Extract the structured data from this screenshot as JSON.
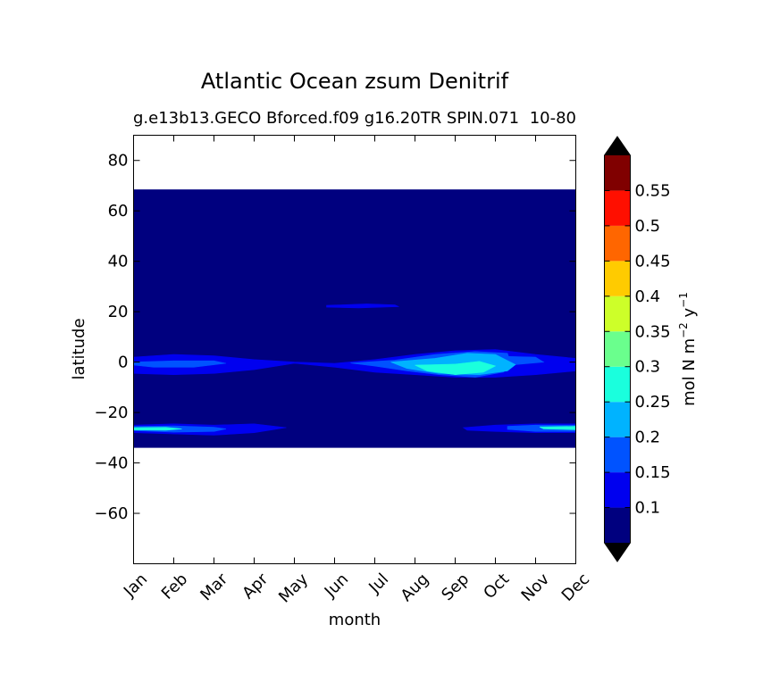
{
  "chart_data": {
    "type": "heatmap",
    "title": "Atlantic Ocean zsum Denitrif",
    "subtitle": "g.e13b13.GECO Bforced.f09 g16.20TR SPIN.071",
    "subtitle_overlap": "10-80",
    "xlabel": "month",
    "ylabel": "latitude",
    "x_ticks": [
      "Jan",
      "Feb",
      "Mar",
      "Apr",
      "May",
      "Jun",
      "Jul",
      "Aug",
      "Sep",
      "Oct",
      "Nov",
      "Dec"
    ],
    "xlim": [
      0,
      11
    ],
    "ylim": [
      -80,
      90
    ],
    "y_ticks": [
      80,
      60,
      40,
      20,
      0,
      -20,
      -40,
      -60
    ],
    "y_tick_labels": [
      "80",
      "60",
      "40",
      "20",
      "0",
      "−20",
      "−40",
      "−60"
    ],
    "data_extent_lat": [
      -34,
      68.5
    ],
    "colorbar": {
      "label_main": "mol N m",
      "label_exp1": "−2",
      "label_mid": " y",
      "label_exp2": "−1",
      "levels": [
        0.05,
        0.1,
        0.15,
        0.2,
        0.25,
        0.3,
        0.35,
        0.4,
        0.45,
        0.5,
        0.55,
        0.6
      ],
      "tick_values": [
        0.1,
        0.15,
        0.2,
        0.25,
        0.3,
        0.35,
        0.4,
        0.45,
        0.5,
        0.55
      ],
      "tick_labels": [
        "0.1",
        "0.15",
        "0.2",
        "0.25",
        "0.3",
        "0.35",
        "0.4",
        "0.45",
        "0.5",
        "0.55"
      ],
      "colors": [
        "#00007f",
        "#0000ef",
        "#0053ff",
        "#00b3ff",
        "#1affdd",
        "#6aff8d",
        "#cdff29",
        "#ffcb00",
        "#ff6600",
        "#ff0f00",
        "#800000"
      ],
      "extend_below_color": "#000000",
      "extend_above_color": "#000000"
    },
    "background_level_color": "#00007f",
    "features": [
      {
        "level": 0.1,
        "color": "#0000ef",
        "points": [
          [
            0,
            2
          ],
          [
            1,
            3
          ],
          [
            2,
            2.5
          ],
          [
            3,
            1
          ],
          [
            4,
            0
          ],
          [
            5,
            -0.5
          ],
          [
            6,
            1
          ],
          [
            7,
            3
          ],
          [
            8,
            4.5
          ],
          [
            9,
            5
          ],
          [
            10,
            3
          ],
          [
            11,
            1.5
          ],
          [
            11,
            -3.5
          ],
          [
            10,
            -5
          ],
          [
            9,
            -6
          ],
          [
            8,
            -6
          ],
          [
            7,
            -5
          ],
          [
            6,
            -4
          ],
          [
            5,
            -2
          ],
          [
            4,
            -0.5
          ],
          [
            3,
            -3
          ],
          [
            2,
            -4.5
          ],
          [
            1,
            -5
          ],
          [
            0,
            -4.5
          ]
        ]
      },
      {
        "level": 0.15,
        "color": "#0053ff",
        "points": [
          [
            0,
            0
          ],
          [
            1,
            0.5
          ],
          [
            2,
            0.5
          ],
          [
            2.3,
            -0.5
          ],
          [
            1.5,
            -2
          ],
          [
            0.5,
            -2
          ],
          [
            0,
            -1.2
          ]
        ]
      },
      {
        "level": 0.15,
        "color": "#0053ff",
        "points": [
          [
            5.4,
            -0.4
          ],
          [
            6.5,
            0.8
          ],
          [
            7.5,
            3
          ],
          [
            8.5,
            4.2
          ],
          [
            9.3,
            3.5
          ],
          [
            9.4,
            -1
          ],
          [
            9.2,
            -4
          ],
          [
            8.5,
            -6
          ],
          [
            7.6,
            -5
          ],
          [
            6.8,
            -3.5
          ],
          [
            6,
            -1.6
          ]
        ]
      },
      {
        "level": 0.15,
        "color": "#0053ff",
        "points": [
          [
            8.7,
            2.5
          ],
          [
            10,
            2
          ],
          [
            10.2,
            0
          ],
          [
            9.5,
            -1
          ],
          [
            8.9,
            0
          ]
        ]
      },
      {
        "level": 0.2,
        "color": "#00b3ff",
        "points": [
          [
            6.4,
            0
          ],
          [
            7.5,
            1.5
          ],
          [
            8.3,
            3.5
          ],
          [
            9,
            3
          ],
          [
            9.5,
            -1
          ],
          [
            9.3,
            -3.5
          ],
          [
            8.6,
            -5
          ],
          [
            7.6,
            -4.5
          ],
          [
            6.8,
            -2.5
          ]
        ]
      },
      {
        "level": 0.25,
        "color": "#1affdd",
        "points": [
          [
            7,
            -1.2
          ],
          [
            8,
            -0.8
          ],
          [
            8.6,
            0.3
          ],
          [
            9,
            -1.5
          ],
          [
            8.7,
            -4
          ],
          [
            8,
            -5
          ],
          [
            7.3,
            -3.5
          ]
        ]
      },
      {
        "level": 0.1,
        "color": "#0000ef",
        "points": [
          [
            0,
            -25
          ],
          [
            1,
            -24.5
          ],
          [
            2,
            -25
          ],
          [
            3,
            -24.5
          ],
          [
            3.8,
            -26
          ],
          [
            3,
            -28
          ],
          [
            2,
            -29
          ],
          [
            1,
            -28.5
          ],
          [
            0,
            -28
          ]
        ]
      },
      {
        "level": 0.15,
        "color": "#0053ff",
        "points": [
          [
            0,
            -25.5
          ],
          [
            1,
            -25.3
          ],
          [
            2,
            -25.8
          ],
          [
            2.3,
            -26.5
          ],
          [
            2,
            -27.5
          ],
          [
            1,
            -27.8
          ],
          [
            0,
            -27.2
          ]
        ]
      },
      {
        "level": 0.25,
        "color": "#1affdd",
        "points": [
          [
            0,
            -26
          ],
          [
            0.8,
            -25.9
          ],
          [
            1.2,
            -26.5
          ],
          [
            0.8,
            -27
          ],
          [
            0,
            -26.9
          ]
        ]
      },
      {
        "level": 0.1,
        "color": "#0000ef",
        "points": [
          [
            8.2,
            -26
          ],
          [
            9,
            -25
          ],
          [
            10,
            -24.5
          ],
          [
            11,
            -24.5
          ],
          [
            11,
            -28
          ],
          [
            10,
            -28
          ],
          [
            9,
            -27.5
          ],
          [
            8.3,
            -27
          ]
        ]
      },
      {
        "level": 0.15,
        "color": "#0053ff",
        "points": [
          [
            9.3,
            -25.5
          ],
          [
            10,
            -25
          ],
          [
            11,
            -25
          ],
          [
            11,
            -27.5
          ],
          [
            10,
            -27.5
          ],
          [
            9.3,
            -26.7
          ]
        ]
      },
      {
        "level": 0.25,
        "color": "#1affdd",
        "points": [
          [
            10.1,
            -25.7
          ],
          [
            11,
            -25.5
          ],
          [
            11,
            -26.8
          ],
          [
            10.2,
            -26.5
          ]
        ]
      },
      {
        "level": 0.1,
        "color": "#0000ef",
        "points": [
          [
            4.8,
            22.5
          ],
          [
            5.8,
            23.1
          ],
          [
            6.5,
            22.7
          ],
          [
            6.6,
            22
          ],
          [
            5.6,
            21.5
          ],
          [
            4.8,
            21.8
          ]
        ]
      }
    ]
  }
}
